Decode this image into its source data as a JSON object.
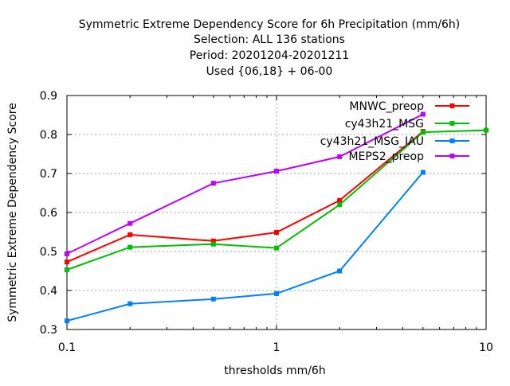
{
  "chart_data": {
    "type": "line",
    "title_lines": [
      "Symmetric Extreme Dependency Score  for 6h Precipitation (mm/6h)",
      "Selection: ALL    136 stations",
      "Period: 20201204-20201211",
      "Used {06,18} + 06-00"
    ],
    "xlabel": "thresholds mm/6h",
    "ylabel": "Symmetric Extreme Dependency Score",
    "x_scale": "log",
    "xlim": [
      0.1,
      10
    ],
    "ylim": [
      0.3,
      0.9
    ],
    "x_ticks": [
      {
        "value": 0.1,
        "label": "0.1"
      },
      {
        "value": 1,
        "label": "1"
      },
      {
        "value": 10,
        "label": "10"
      }
    ],
    "y_ticks": [
      {
        "value": 0.3,
        "label": "0.3"
      },
      {
        "value": 0.4,
        "label": "0.4"
      },
      {
        "value": 0.5,
        "label": "0.5"
      },
      {
        "value": 0.6,
        "label": "0.6"
      },
      {
        "value": 0.7,
        "label": "0.7"
      },
      {
        "value": 0.8,
        "label": "0.8"
      },
      {
        "value": 0.9,
        "label": "0.9"
      }
    ],
    "grid": true,
    "legend_position": "top-right",
    "x": [
      0.1,
      0.2,
      0.5,
      1,
      2,
      5,
      10
    ],
    "series": [
      {
        "name": "MNWC_preop",
        "color": "#ff0000",
        "values": [
          0.473,
          0.543,
          0.527,
          0.549,
          0.631,
          0.808,
          null
        ]
      },
      {
        "name": "cy43h21_MSG",
        "color": "#00c000",
        "values": [
          0.453,
          0.511,
          0.519,
          0.509,
          0.62,
          0.806,
          0.811
        ]
      },
      {
        "name": "cy43h21_MSG_IAU",
        "color": "#0080ff",
        "values": [
          0.322,
          0.366,
          0.378,
          0.392,
          0.45,
          0.703,
          null
        ]
      },
      {
        "name": "MEPS2_preop",
        "color": "#c000ff",
        "values": [
          0.494,
          0.572,
          0.675,
          0.706,
          0.743,
          0.852,
          null
        ]
      }
    ]
  }
}
